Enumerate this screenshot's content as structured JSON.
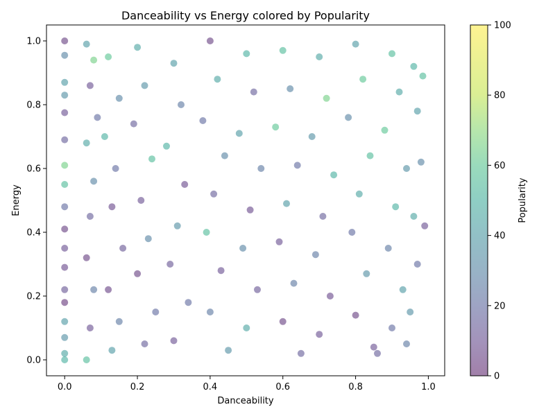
{
  "chart_data": {
    "type": "scatter",
    "title": "Danceability vs Energy colored by Popularity",
    "xlabel": "Danceability",
    "ylabel": "Energy",
    "xlim": [
      -0.05,
      1.045
    ],
    "ylim": [
      -0.05,
      1.05
    ],
    "x_ticks": [
      "0.0",
      "0.2",
      "0.4",
      "0.6",
      "0.8",
      "1.0"
    ],
    "x_tick_values": [
      0.0,
      0.2,
      0.4,
      0.6,
      0.8,
      1.0
    ],
    "y_ticks": [
      "0.0",
      "0.2",
      "0.4",
      "0.6",
      "0.8",
      "1.0"
    ],
    "y_tick_values": [
      0.0,
      0.2,
      0.4,
      0.6,
      0.8,
      1.0
    ],
    "colorbar": {
      "label": "Popularity",
      "colormap": "viridis",
      "alpha": 0.5,
      "range": [
        0,
        100
      ],
      "ticks": [
        "0",
        "20",
        "40",
        "60",
        "80",
        "100"
      ],
      "tick_values": [
        0,
        20,
        40,
        60,
        80,
        100
      ]
    },
    "grid": false,
    "points": [
      [
        0.0,
        1.0,
        5
      ],
      [
        0.0,
        0.955,
        30
      ],
      [
        0.0,
        0.87,
        40
      ],
      [
        0.0,
        0.83,
        35
      ],
      [
        0.0,
        0.775,
        10
      ],
      [
        0.0,
        0.69,
        15
      ],
      [
        0.0,
        0.61,
        65
      ],
      [
        0.0,
        0.55,
        55
      ],
      [
        0.0,
        0.48,
        20
      ],
      [
        0.0,
        0.41,
        5
      ],
      [
        0.0,
        0.35,
        10
      ],
      [
        0.0,
        0.29,
        8
      ],
      [
        0.0,
        0.22,
        12
      ],
      [
        0.0,
        0.18,
        3
      ],
      [
        0.0,
        0.12,
        40
      ],
      [
        0.0,
        0.07,
        35
      ],
      [
        0.0,
        0.02,
        45
      ],
      [
        0.0,
        0.0,
        50
      ],
      [
        0.06,
        0.99,
        40
      ],
      [
        0.08,
        0.94,
        65
      ],
      [
        0.07,
        0.86,
        10
      ],
      [
        0.09,
        0.76,
        20
      ],
      [
        0.06,
        0.68,
        45
      ],
      [
        0.08,
        0.56,
        30
      ],
      [
        0.07,
        0.45,
        15
      ],
      [
        0.06,
        0.32,
        5
      ],
      [
        0.08,
        0.22,
        25
      ],
      [
        0.07,
        0.1,
        10
      ],
      [
        0.06,
        0.0,
        55
      ],
      [
        0.12,
        0.95,
        60
      ],
      [
        0.15,
        0.82,
        30
      ],
      [
        0.11,
        0.7,
        50
      ],
      [
        0.14,
        0.6,
        20
      ],
      [
        0.13,
        0.48,
        8
      ],
      [
        0.16,
        0.35,
        12
      ],
      [
        0.12,
        0.22,
        6
      ],
      [
        0.15,
        0.12,
        25
      ],
      [
        0.13,
        0.03,
        40
      ],
      [
        0.2,
        0.98,
        45
      ],
      [
        0.22,
        0.86,
        35
      ],
      [
        0.19,
        0.74,
        15
      ],
      [
        0.24,
        0.63,
        55
      ],
      [
        0.21,
        0.5,
        10
      ],
      [
        0.23,
        0.38,
        30
      ],
      [
        0.2,
        0.27,
        5
      ],
      [
        0.25,
        0.15,
        20
      ],
      [
        0.22,
        0.05,
        15
      ],
      [
        0.3,
        0.93,
        40
      ],
      [
        0.32,
        0.8,
        25
      ],
      [
        0.28,
        0.67,
        50
      ],
      [
        0.33,
        0.55,
        8
      ],
      [
        0.31,
        0.42,
        35
      ],
      [
        0.29,
        0.3,
        12
      ],
      [
        0.34,
        0.18,
        20
      ],
      [
        0.3,
        0.06,
        10
      ],
      [
        0.4,
        1.0,
        5
      ],
      [
        0.42,
        0.88,
        45
      ],
      [
        0.38,
        0.75,
        20
      ],
      [
        0.44,
        0.64,
        30
      ],
      [
        0.41,
        0.52,
        15
      ],
      [
        0.39,
        0.4,
        55
      ],
      [
        0.43,
        0.28,
        10
      ],
      [
        0.4,
        0.15,
        25
      ],
      [
        0.45,
        0.03,
        35
      ],
      [
        0.5,
        0.96,
        50
      ],
      [
        0.52,
        0.84,
        15
      ],
      [
        0.48,
        0.71,
        40
      ],
      [
        0.54,
        0.6,
        25
      ],
      [
        0.51,
        0.47,
        8
      ],
      [
        0.49,
        0.35,
        30
      ],
      [
        0.53,
        0.22,
        12
      ],
      [
        0.5,
        0.1,
        45
      ],
      [
        0.6,
        0.97,
        55
      ],
      [
        0.62,
        0.85,
        30
      ],
      [
        0.58,
        0.73,
        60
      ],
      [
        0.64,
        0.61,
        20
      ],
      [
        0.61,
        0.49,
        40
      ],
      [
        0.59,
        0.37,
        10
      ],
      [
        0.63,
        0.24,
        25
      ],
      [
        0.6,
        0.12,
        5
      ],
      [
        0.65,
        0.02,
        15
      ],
      [
        0.7,
        0.95,
        45
      ],
      [
        0.72,
        0.82,
        65
      ],
      [
        0.68,
        0.7,
        35
      ],
      [
        0.74,
        0.58,
        50
      ],
      [
        0.71,
        0.45,
        15
      ],
      [
        0.69,
        0.33,
        25
      ],
      [
        0.73,
        0.2,
        8
      ],
      [
        0.7,
        0.08,
        10
      ],
      [
        0.8,
        0.99,
        40
      ],
      [
        0.82,
        0.88,
        60
      ],
      [
        0.78,
        0.76,
        30
      ],
      [
        0.84,
        0.64,
        55
      ],
      [
        0.81,
        0.52,
        45
      ],
      [
        0.79,
        0.4,
        20
      ],
      [
        0.83,
        0.27,
        35
      ],
      [
        0.8,
        0.14,
        5
      ],
      [
        0.85,
        0.04,
        10
      ],
      [
        0.9,
        0.96,
        55
      ],
      [
        0.92,
        0.84,
        45
      ],
      [
        0.88,
        0.72,
        60
      ],
      [
        0.94,
        0.6,
        35
      ],
      [
        0.91,
        0.48,
        50
      ],
      [
        0.89,
        0.35,
        25
      ],
      [
        0.93,
        0.22,
        40
      ],
      [
        0.9,
        0.1,
        20
      ],
      [
        0.86,
        0.02,
        15
      ],
      [
        0.96,
        0.92,
        50
      ],
      [
        0.97,
        0.78,
        40
      ],
      [
        0.98,
        0.62,
        30
      ],
      [
        0.96,
        0.45,
        45
      ],
      [
        0.97,
        0.3,
        20
      ],
      [
        0.95,
        0.15,
        35
      ],
      [
        0.94,
        0.05,
        25
      ],
      [
        0.985,
        0.89,
        55
      ],
      [
        0.99,
        0.42,
        10
      ]
    ]
  }
}
